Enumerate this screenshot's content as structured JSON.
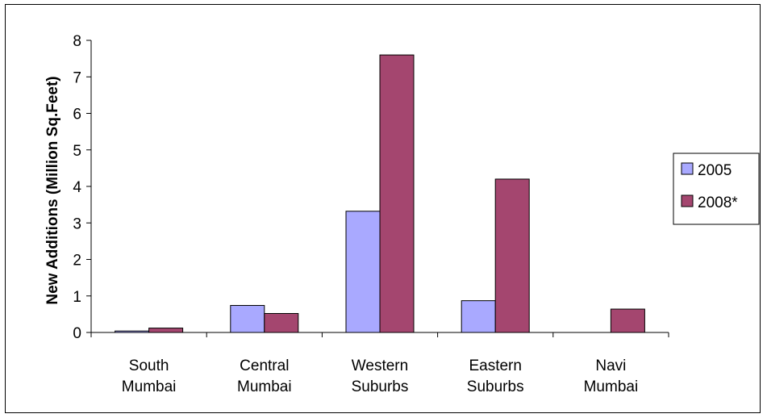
{
  "chart_data": {
    "type": "bar",
    "ylabel": "New Additions (Million Sq.Feet)",
    "xlabel": "",
    "title": "",
    "ylim": [
      0,
      8
    ],
    "yticks": [
      0,
      1,
      2,
      3,
      4,
      5,
      6,
      7,
      8
    ],
    "grid": false,
    "legend_position": "right",
    "categories": [
      [
        "South",
        "Mumbai"
      ],
      [
        "Central",
        "Mumbai"
      ],
      [
        "Western",
        "Suburbs"
      ],
      [
        "Eastern",
        "Suburbs"
      ],
      [
        "Navi",
        "Mumbai"
      ]
    ],
    "series": [
      {
        "name": "2005",
        "color": "#a9a9ff",
        "values": [
          0.04,
          0.74,
          3.32,
          0.87,
          0
        ]
      },
      {
        "name": "2008*",
        "color": "#a4466f",
        "values": [
          0.12,
          0.52,
          7.6,
          4.2,
          0.64
        ]
      }
    ]
  }
}
